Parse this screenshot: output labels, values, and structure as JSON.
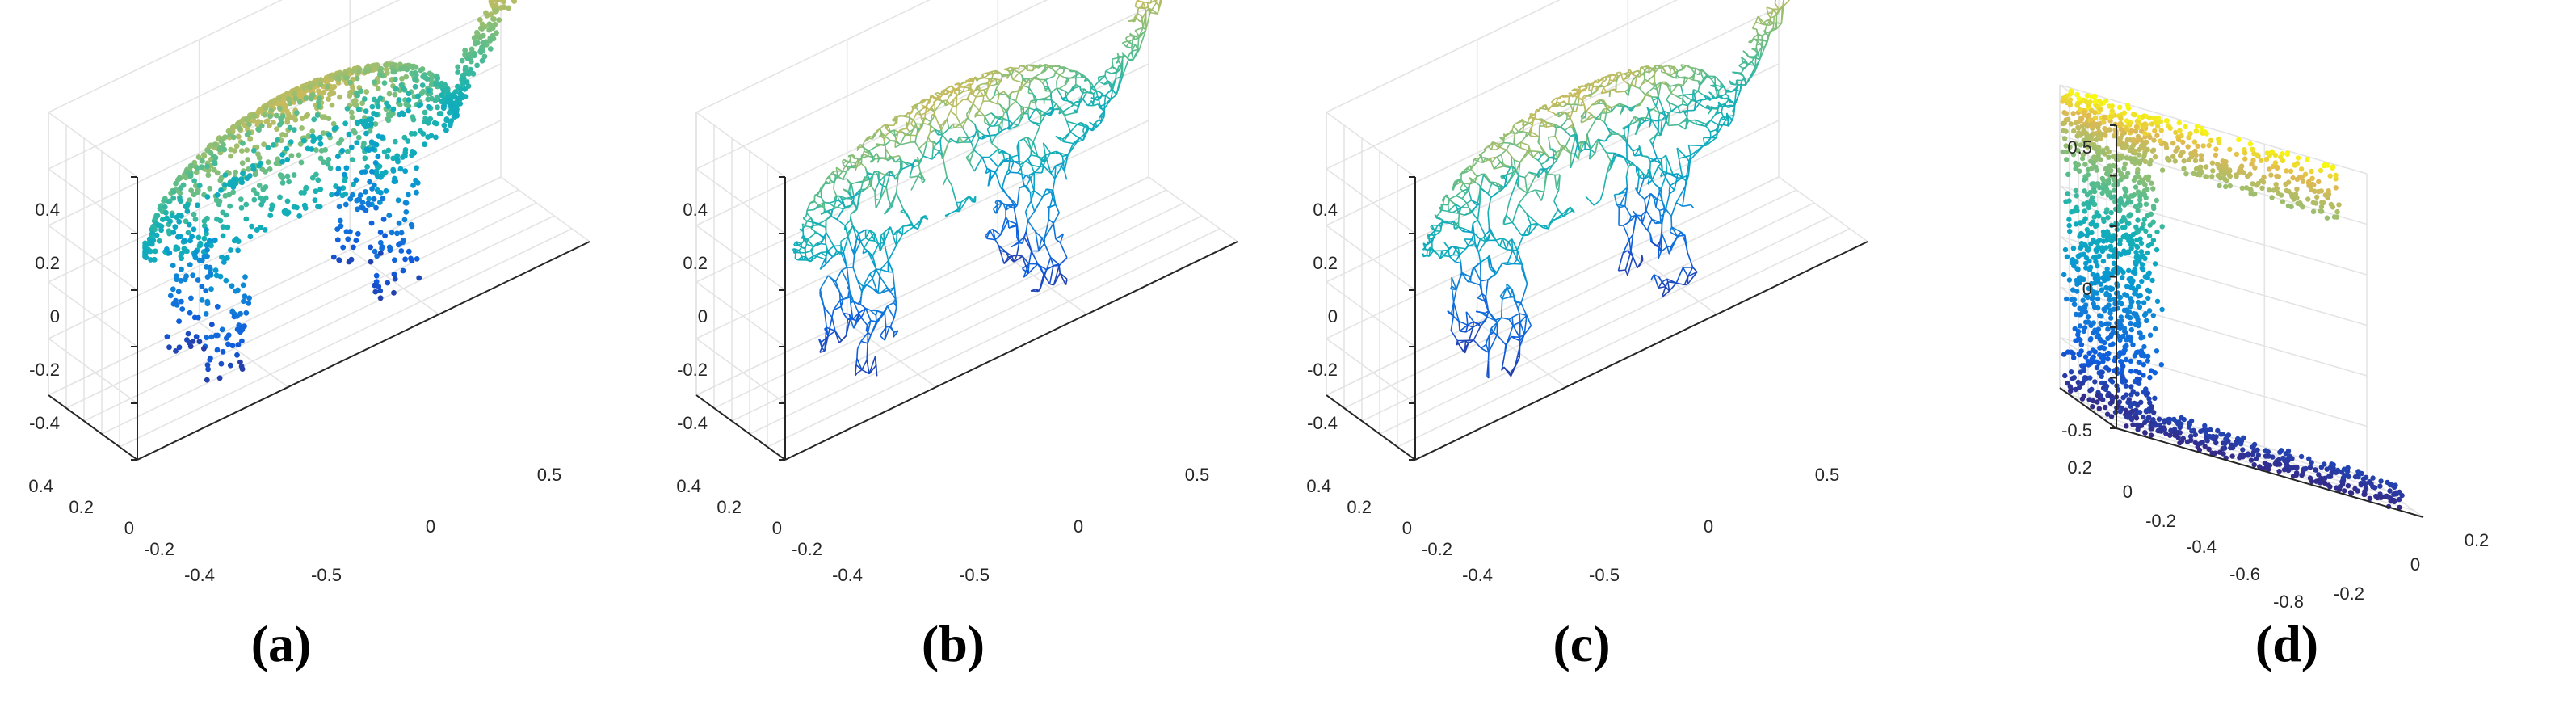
{
  "chart_data": [
    {
      "panel": "a",
      "type": "scatter",
      "render": "point cloud",
      "caption": "(a)",
      "z_ticks": [
        "0.4",
        "0.2",
        "0",
        "-0.2",
        "-0.4"
      ],
      "y_ticks": [
        "0.4",
        "0.2",
        "0",
        "-0.2",
        "-0.4"
      ],
      "x_ticks": [
        "-0.5",
        "0",
        "0.5"
      ],
      "zlim": [
        -0.5,
        0.5
      ],
      "ylim": [
        -0.5,
        0.5
      ],
      "xlim": [
        -0.75,
        0.75
      ],
      "grid": true,
      "colormap": "parula (color encodes height z)"
    },
    {
      "panel": "b",
      "type": "scatter",
      "render": "triangle mesh wireframe",
      "caption": "(b)",
      "z_ticks": [
        "0.4",
        "0.2",
        "0",
        "-0.2",
        "-0.4"
      ],
      "y_ticks": [
        "0.4",
        "0.2",
        "0",
        "-0.2",
        "-0.4"
      ],
      "x_ticks": [
        "-0.5",
        "0",
        "0.5"
      ],
      "zlim": [
        -0.5,
        0.5
      ],
      "ylim": [
        -0.5,
        0.5
      ],
      "xlim": [
        -0.75,
        0.75
      ],
      "grid": true,
      "colormap": "parula (color encodes height z)"
    },
    {
      "panel": "c",
      "type": "scatter",
      "render": "triangle mesh wireframe",
      "caption": "(c)",
      "z_ticks": [
        "0.4",
        "0.2",
        "0",
        "-0.2",
        "-0.4"
      ],
      "y_ticks": [
        "0.4",
        "0.2",
        "0",
        "-0.2",
        "-0.4"
      ],
      "x_ticks": [
        "-0.5",
        "0",
        "0.5"
      ],
      "zlim": [
        -0.5,
        0.5
      ],
      "ylim": [
        -0.5,
        0.5
      ],
      "xlim": [
        -0.75,
        0.75
      ],
      "grid": true,
      "colormap": "parula (color encodes height z)"
    },
    {
      "panel": "d",
      "type": "scatter",
      "render": "point cloud",
      "caption": "(d)",
      "z_ticks": [
        "0.5",
        "0",
        "-0.5"
      ],
      "y_ticks": [
        "0.2",
        "0",
        "-0.2",
        "-0.4",
        "-0.6",
        "-0.8"
      ],
      "x_ticks": [
        "-0.2",
        "0",
        "0.2"
      ],
      "zlim": [
        -0.55,
        0.55
      ],
      "ylim": [
        -0.85,
        0.25
      ],
      "xlim": [
        -0.3,
        0.3
      ],
      "grid": true,
      "colormap": "parula (color encodes height z)"
    }
  ]
}
